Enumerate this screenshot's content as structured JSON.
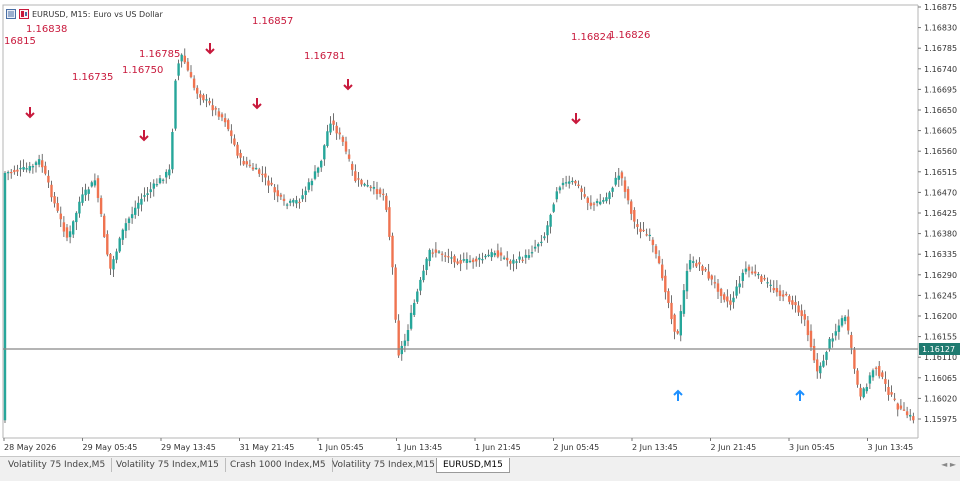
{
  "header": {
    "symbol": "EURUSD, M15:",
    "description": "Euro vs US Dollar"
  },
  "colors": {
    "bull": "#26a69a",
    "bear": "#ef7350",
    "wick": "#333333",
    "sell_arrow": "#c8193c",
    "buy_arrow": "#1e90ff",
    "label": "#c8193c",
    "price_line": "#777777",
    "price_badge": "#1f7a70"
  },
  "price_axis": {
    "ticks": [
      "1.16875",
      "1.16830",
      "1.16785",
      "1.16740",
      "1.16695",
      "1.16650",
      "1.16605",
      "1.16560",
      "1.16515",
      "1.16470",
      "1.16425",
      "1.16380",
      "1.16335",
      "1.16290",
      "1.16245",
      "1.16200",
      "1.16155",
      "1.16110",
      "1.16065",
      "1.16020",
      "1.15975"
    ],
    "current_price": "1.16127"
  },
  "time_axis": {
    "labels": [
      "28 May 2026",
      "29 May 05:45",
      "29 May 13:45",
      "31 May 21:45",
      "1 Jun 05:45",
      "1 Jun 13:45",
      "1 Jun 21:45",
      "2 Jun 05:45",
      "2 Jun 13:45",
      "2 Jun 21:45",
      "3 Jun 05:45",
      "3 Jun 13:45"
    ]
  },
  "level_labels": [
    "16815",
    "1.16838",
    "1.16735",
    "1.16750",
    "1.16785",
    "1.16857",
    "1.16781",
    "1.16824",
    "1.16826"
  ],
  "arrows": {
    "sell_count": 6,
    "buy_count": 2
  },
  "tabs": [
    "Volatility 75 Index,M5",
    "Volatility 75 Index,M15",
    "Crash 1000 Index,M5",
    "Volatility 75 Index,M15",
    "EURUSD,M15"
  ],
  "active_tab_index": 4,
  "tab_scroll": "◄ ►"
}
